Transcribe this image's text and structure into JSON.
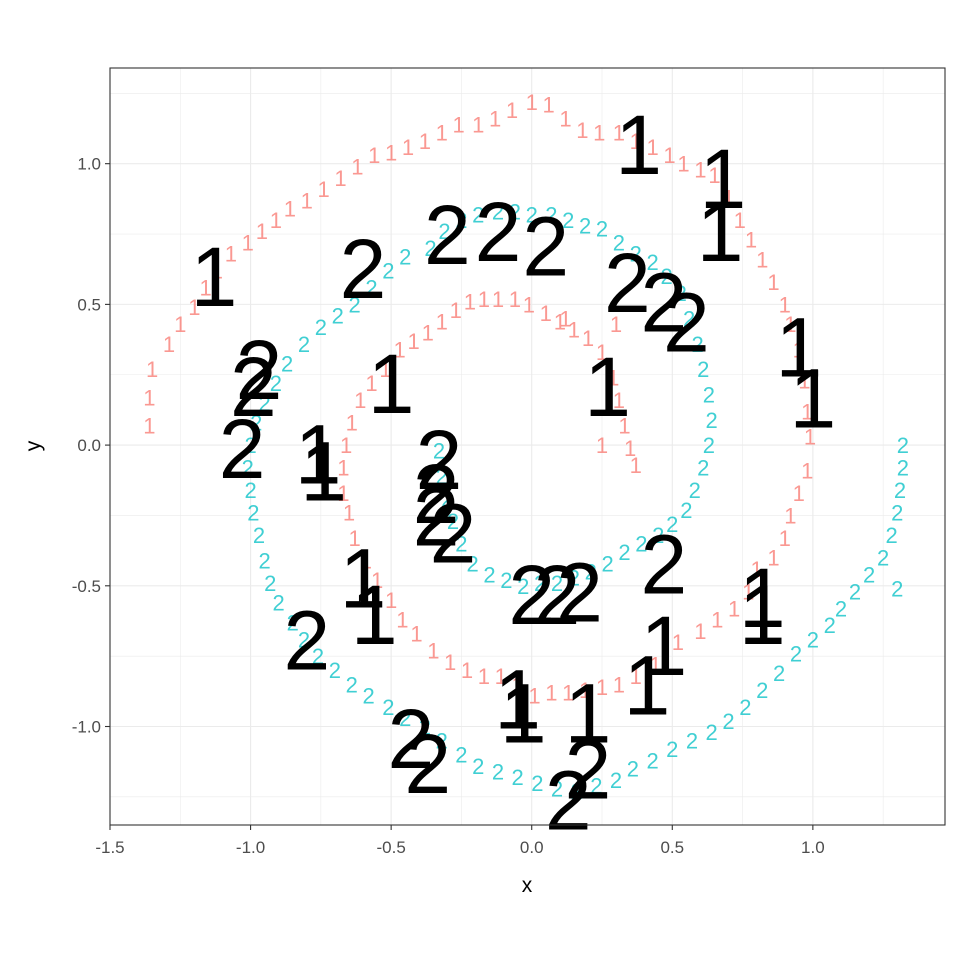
{
  "chart_data": {
    "type": "scatter",
    "title": "",
    "xlabel": "x",
    "ylabel": "y",
    "xlim": [
      -1.5,
      1.47
    ],
    "ylim": [
      -1.35,
      1.34
    ],
    "xticks": [
      "-1.5",
      "-1.0",
      "-0.5",
      "0.0",
      "0.5",
      "1.0"
    ],
    "xtick_values": [
      -1.5,
      -1.0,
      -0.5,
      0.0,
      0.5,
      1.0
    ],
    "yticks": [
      "-1.0",
      "-0.5",
      "0.0",
      "0.5",
      "1.0"
    ],
    "ytick_values": [
      -1.0,
      -0.5,
      0.0,
      0.5,
      1.0
    ],
    "grid": true,
    "point_label_style": "text glyphs",
    "series": [
      {
        "name": "1",
        "color": "#F8766D",
        "points": [
          [
            -1.36,
            0.07
          ],
          [
            -1.36,
            0.17
          ],
          [
            -1.35,
            0.27
          ],
          [
            -1.29,
            0.36
          ],
          [
            -1.25,
            0.43
          ],
          [
            -1.2,
            0.49
          ],
          [
            -1.16,
            0.56
          ],
          [
            -1.12,
            0.62
          ],
          [
            -1.07,
            0.68
          ],
          [
            -1.01,
            0.72
          ],
          [
            -0.96,
            0.76
          ],
          [
            -0.91,
            0.8
          ],
          [
            -0.86,
            0.84
          ],
          [
            -0.8,
            0.87
          ],
          [
            -0.74,
            0.91
          ],
          [
            -0.68,
            0.95
          ],
          [
            -0.62,
            0.99
          ],
          [
            -0.56,
            1.03
          ],
          [
            -0.5,
            1.04
          ],
          [
            -0.44,
            1.06
          ],
          [
            -0.38,
            1.08
          ],
          [
            -0.32,
            1.11
          ],
          [
            -0.26,
            1.14
          ],
          [
            -0.19,
            1.14
          ],
          [
            -0.13,
            1.16
          ],
          [
            -0.07,
            1.19
          ],
          [
            0.0,
            1.22
          ],
          [
            0.06,
            1.21
          ],
          [
            0.12,
            1.16
          ],
          [
            0.18,
            1.12
          ],
          [
            0.24,
            1.11
          ],
          [
            0.31,
            1.11
          ],
          [
            0.37,
            1.08
          ],
          [
            0.43,
            1.06
          ],
          [
            0.49,
            1.03
          ],
          [
            0.54,
            1.0
          ],
          [
            0.6,
            0.98
          ],
          [
            0.65,
            0.96
          ],
          [
            0.7,
            0.88
          ],
          [
            0.74,
            0.8
          ],
          [
            0.78,
            0.73
          ],
          [
            0.82,
            0.66
          ],
          [
            0.86,
            0.58
          ],
          [
            0.9,
            0.5
          ],
          [
            0.92,
            0.43
          ],
          [
            0.95,
            0.34
          ],
          [
            0.97,
            0.23
          ],
          [
            0.98,
            0.12
          ],
          [
            0.99,
            0.03
          ],
          [
            0.98,
            -0.09
          ],
          [
            0.95,
            -0.17
          ],
          [
            0.92,
            -0.25
          ],
          [
            0.9,
            -0.33
          ],
          [
            0.86,
            -0.4
          ],
          [
            0.8,
            -0.44
          ],
          [
            0.77,
            -0.52
          ],
          [
            0.72,
            -0.58
          ],
          [
            0.66,
            -0.62
          ],
          [
            0.6,
            -0.66
          ],
          [
            0.52,
            -0.7
          ],
          [
            0.44,
            -0.78
          ],
          [
            0.37,
            -0.82
          ],
          [
            0.31,
            -0.85
          ],
          [
            0.25,
            -0.86
          ],
          [
            0.19,
            -0.87
          ],
          [
            0.13,
            -0.88
          ],
          [
            0.07,
            -0.88
          ],
          [
            0.01,
            -0.89
          ],
          [
            -0.05,
            -0.85
          ],
          [
            -0.11,
            -0.82
          ],
          [
            -0.17,
            -0.82
          ],
          [
            -0.23,
            -0.8
          ],
          [
            -0.29,
            -0.77
          ],
          [
            -0.35,
            -0.73
          ],
          [
            -0.41,
            -0.67
          ],
          [
            -0.46,
            -0.62
          ],
          [
            -0.5,
            -0.55
          ],
          [
            -0.55,
            -0.48
          ],
          [
            -0.59,
            -0.41
          ],
          [
            -0.63,
            -0.33
          ],
          [
            -0.65,
            -0.24
          ],
          [
            -0.67,
            -0.17
          ],
          [
            -0.67,
            -0.08
          ],
          [
            -0.66,
            0.0
          ],
          [
            -0.64,
            0.08
          ],
          [
            -0.61,
            0.16
          ],
          [
            -0.57,
            0.22
          ],
          [
            -0.52,
            0.27
          ],
          [
            -0.47,
            0.34
          ],
          [
            -0.42,
            0.37
          ],
          [
            -0.37,
            0.4
          ],
          [
            -0.32,
            0.44
          ],
          [
            -0.27,
            0.48
          ],
          [
            -0.22,
            0.51
          ],
          [
            -0.17,
            0.52
          ],
          [
            -0.12,
            0.52
          ],
          [
            -0.06,
            0.52
          ],
          [
            -0.01,
            0.5
          ],
          [
            0.05,
            0.47
          ],
          [
            0.1,
            0.44
          ],
          [
            0.15,
            0.41
          ],
          [
            0.2,
            0.38
          ],
          [
            0.25,
            0.33
          ],
          [
            0.29,
            0.24
          ],
          [
            0.31,
            0.16
          ],
          [
            0.33,
            0.07
          ],
          [
            0.35,
            -0.01
          ],
          [
            0.37,
            -0.07
          ],
          [
            0.25,
            0.0
          ],
          [
            0.12,
            0.45
          ],
          [
            0.3,
            0.43
          ]
        ]
      },
      {
        "name": "2",
        "color": "#00BFC4",
        "points": [
          [
            -0.36,
            0.7
          ],
          [
            -0.31,
            0.76
          ],
          [
            -0.25,
            0.8
          ],
          [
            -0.19,
            0.82
          ],
          [
            -0.12,
            0.83
          ],
          [
            -0.06,
            0.83
          ],
          [
            0.0,
            0.82
          ],
          [
            0.07,
            0.82
          ],
          [
            0.13,
            0.8
          ],
          [
            0.19,
            0.78
          ],
          [
            0.25,
            0.77
          ],
          [
            0.31,
            0.72
          ],
          [
            0.37,
            0.68
          ],
          [
            0.43,
            0.65
          ],
          [
            0.48,
            0.6
          ],
          [
            0.53,
            0.54
          ],
          [
            0.56,
            0.45
          ],
          [
            0.59,
            0.36
          ],
          [
            0.61,
            0.27
          ],
          [
            0.63,
            0.18
          ],
          [
            0.64,
            0.09
          ],
          [
            0.63,
            0.0
          ],
          [
            0.61,
            -0.08
          ],
          [
            0.58,
            -0.16
          ],
          [
            0.55,
            -0.23
          ],
          [
            0.5,
            -0.28
          ],
          [
            0.45,
            -0.32
          ],
          [
            0.39,
            -0.35
          ],
          [
            0.33,
            -0.38
          ],
          [
            0.27,
            -0.42
          ],
          [
            0.21,
            -0.45
          ],
          [
            0.15,
            -0.47
          ],
          [
            0.09,
            -0.49
          ],
          [
            0.03,
            -0.49
          ],
          [
            -0.03,
            -0.5
          ],
          [
            -0.09,
            -0.48
          ],
          [
            -0.15,
            -0.46
          ],
          [
            -0.21,
            -0.42
          ],
          [
            -0.25,
            -0.35
          ],
          [
            -0.28,
            -0.27
          ],
          [
            -0.3,
            -0.19
          ],
          [
            -0.32,
            -0.11
          ],
          [
            -0.33,
            -0.02
          ],
          [
            -0.45,
            0.67
          ],
          [
            -0.51,
            0.62
          ],
          [
            -0.57,
            0.56
          ],
          [
            -0.63,
            0.5
          ],
          [
            -0.69,
            0.46
          ],
          [
            -0.75,
            0.42
          ],
          [
            -0.81,
            0.36
          ],
          [
            -0.87,
            0.29
          ],
          [
            -0.91,
            0.22
          ],
          [
            -0.95,
            0.15
          ],
          [
            -0.98,
            0.08
          ],
          [
            -1.0,
            0.0
          ],
          [
            -1.01,
            -0.08
          ],
          [
            -1.0,
            -0.16
          ],
          [
            -0.99,
            -0.24
          ],
          [
            -0.97,
            -0.32
          ],
          [
            -0.95,
            -0.41
          ],
          [
            -0.93,
            -0.49
          ],
          [
            -0.9,
            -0.56
          ],
          [
            -0.85,
            -0.63
          ],
          [
            -0.81,
            -0.69
          ],
          [
            -0.76,
            -0.75
          ],
          [
            -0.7,
            -0.8
          ],
          [
            -0.64,
            -0.85
          ],
          [
            -0.58,
            -0.89
          ],
          [
            -0.51,
            -0.93
          ],
          [
            -0.45,
            -0.97
          ],
          [
            -0.38,
            -1.0
          ],
          [
            -0.32,
            -1.05
          ],
          [
            -0.25,
            -1.1
          ],
          [
            -0.19,
            -1.14
          ],
          [
            -0.12,
            -1.16
          ],
          [
            -0.05,
            -1.18
          ],
          [
            0.02,
            -1.2
          ],
          [
            0.09,
            -1.22
          ],
          [
            0.16,
            -1.23
          ],
          [
            0.23,
            -1.21
          ],
          [
            0.3,
            -1.19
          ],
          [
            0.36,
            -1.15
          ],
          [
            0.43,
            -1.12
          ],
          [
            0.5,
            -1.08
          ],
          [
            0.57,
            -1.05
          ],
          [
            0.64,
            -1.02
          ],
          [
            0.7,
            -0.98
          ],
          [
            0.76,
            -0.93
          ],
          [
            0.82,
            -0.87
          ],
          [
            0.88,
            -0.81
          ],
          [
            0.94,
            -0.74
          ],
          [
            1.0,
            -0.69
          ],
          [
            1.06,
            -0.64
          ],
          [
            1.1,
            -0.58
          ],
          [
            1.15,
            -0.52
          ],
          [
            1.2,
            -0.46
          ],
          [
            1.25,
            -0.4
          ],
          [
            1.28,
            -0.32
          ],
          [
            1.3,
            -0.24
          ],
          [
            1.31,
            -0.16
          ],
          [
            1.32,
            -0.08
          ],
          [
            1.32,
            0.0
          ],
          [
            1.3,
            -0.51
          ]
        ]
      }
    ],
    "highlighted_labels": [
      {
        "text": "1",
        "x": 0.38,
        "y": 1.07
      },
      {
        "text": "1",
        "x": 0.68,
        "y": 0.95
      },
      {
        "text": "1",
        "x": 0.67,
        "y": 0.76
      },
      {
        "text": "1",
        "x": -1.13,
        "y": 0.6
      },
      {
        "text": "1",
        "x": 0.95,
        "y": 0.35
      },
      {
        "text": "1",
        "x": 1.0,
        "y": 0.17
      },
      {
        "text": "1",
        "x": -0.5,
        "y": 0.22
      },
      {
        "text": "1",
        "x": 0.27,
        "y": 0.21
      },
      {
        "text": "1",
        "x": -0.76,
        "y": -0.03
      },
      {
        "text": "1",
        "x": -0.74,
        "y": -0.09
      },
      {
        "text": "1",
        "x": -0.6,
        "y": -0.47
      },
      {
        "text": "1",
        "x": -0.56,
        "y": -0.6
      },
      {
        "text": "1",
        "x": 0.82,
        "y": -0.54
      },
      {
        "text": "1",
        "x": 0.82,
        "y": -0.6
      },
      {
        "text": "1",
        "x": 0.47,
        "y": -0.71
      },
      {
        "text": "1",
        "x": 0.41,
        "y": -0.85
      },
      {
        "text": "1",
        "x": -0.05,
        "y": -0.9
      },
      {
        "text": "1",
        "x": -0.03,
        "y": -0.95
      },
      {
        "text": "1",
        "x": 0.2,
        "y": -0.95
      },
      {
        "text": "2",
        "x": -0.3,
        "y": 0.75
      },
      {
        "text": "2",
        "x": -0.12,
        "y": 0.76
      },
      {
        "text": "2",
        "x": 0.05,
        "y": 0.71
      },
      {
        "text": "2",
        "x": -0.6,
        "y": 0.63
      },
      {
        "text": "2",
        "x": 0.34,
        "y": 0.58
      },
      {
        "text": "2",
        "x": 0.47,
        "y": 0.51
      },
      {
        "text": "2",
        "x": 0.55,
        "y": 0.44
      },
      {
        "text": "2",
        "x": -0.97,
        "y": 0.27
      },
      {
        "text": "2",
        "x": -0.99,
        "y": 0.21
      },
      {
        "text": "2",
        "x": -1.03,
        "y": -0.01
      },
      {
        "text": "2",
        "x": -0.33,
        "y": -0.05
      },
      {
        "text": "2",
        "x": -0.34,
        "y": -0.17
      },
      {
        "text": "2",
        "x": -0.34,
        "y": -0.25
      },
      {
        "text": "2",
        "x": -0.28,
        "y": -0.31
      },
      {
        "text": "2",
        "x": 0.47,
        "y": -0.42
      },
      {
        "text": "2",
        "x": 0.0,
        "y": -0.53
      },
      {
        "text": "2",
        "x": 0.09,
        "y": -0.53
      },
      {
        "text": "2",
        "x": 0.17,
        "y": -0.52
      },
      {
        "text": "2",
        "x": -0.8,
        "y": -0.69
      },
      {
        "text": "2",
        "x": -0.43,
        "y": -1.04
      },
      {
        "text": "2",
        "x": -0.37,
        "y": -1.13
      },
      {
        "text": "2",
        "x": 0.2,
        "y": -1.15
      },
      {
        "text": "2",
        "x": 0.13,
        "y": -1.26
      }
    ]
  }
}
